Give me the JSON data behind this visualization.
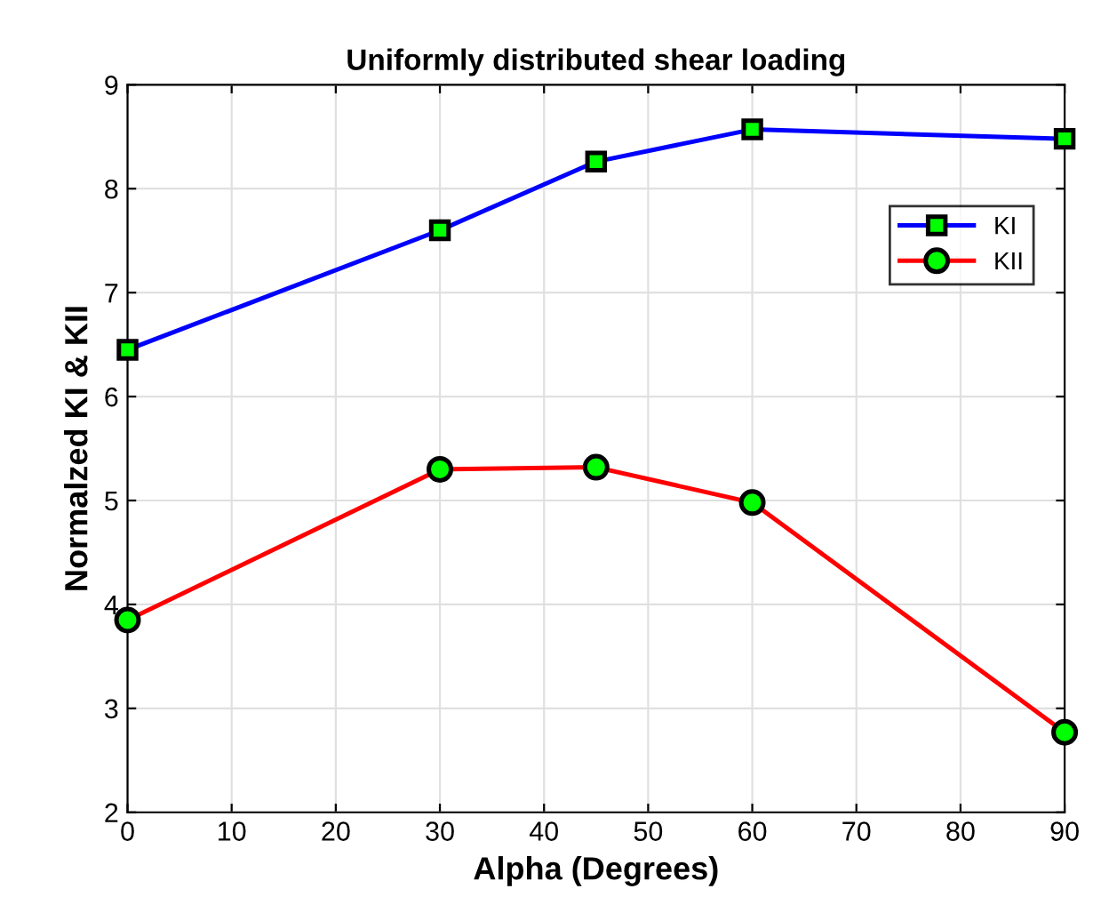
{
  "chart_data": {
    "type": "line",
    "title": "Uniformly distributed shear loading",
    "xlabel": "Alpha (Degrees)",
    "ylabel": "Normalzed KI & KII",
    "x": [
      0,
      30,
      45,
      60,
      90
    ],
    "series": [
      {
        "name": "KI",
        "color": "#0000ff",
        "marker": "square",
        "values": [
          6.45,
          7.6,
          8.26,
          8.57,
          8.48
        ]
      },
      {
        "name": "KII",
        "color": "#ff0000",
        "marker": "circle",
        "values": [
          3.85,
          5.3,
          5.32,
          4.98,
          2.77
        ]
      }
    ],
    "xlim": [
      0,
      90
    ],
    "xticks": [
      0,
      10,
      20,
      30,
      40,
      50,
      60,
      70,
      80,
      90
    ],
    "ylim": [
      2,
      9
    ],
    "yticks": [
      2,
      3,
      4,
      5,
      6,
      7,
      8,
      9
    ],
    "grid": true,
    "legend": "top right",
    "line_style": "solid"
  }
}
